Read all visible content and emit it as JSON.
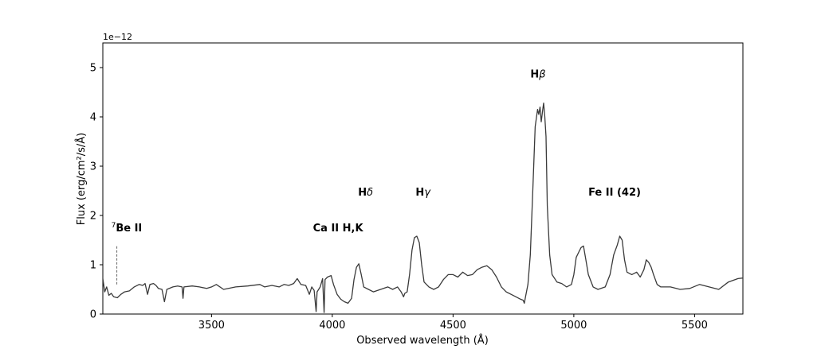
{
  "chart_data": {
    "type": "line",
    "xlabel": "Observed wavelength (Å)",
    "ylabel": "Flux (erg/cm²/s/Å)",
    "y_offset_label": "1e−12",
    "xlim": [
      3050,
      5700
    ],
    "ylim": [
      0,
      5.5
    ],
    "xticks": [
      3500,
      4000,
      4500,
      5000,
      5500
    ],
    "yticks": [
      0,
      1,
      2,
      3,
      4,
      5
    ],
    "grid": false,
    "line_color": "#3a3a3a",
    "marker_color": "#666666",
    "series": [
      {
        "points": [
          [
            3050,
            0.72
          ],
          [
            3058,
            0.45
          ],
          [
            3066,
            0.55
          ],
          [
            3075,
            0.38
          ],
          [
            3085,
            0.42
          ],
          [
            3095,
            0.35
          ],
          [
            3110,
            0.33
          ],
          [
            3125,
            0.4
          ],
          [
            3140,
            0.45
          ],
          [
            3160,
            0.47
          ],
          [
            3180,
            0.55
          ],
          [
            3200,
            0.6
          ],
          [
            3215,
            0.58
          ],
          [
            3225,
            0.62
          ],
          [
            3235,
            0.4
          ],
          [
            3245,
            0.6
          ],
          [
            3260,
            0.62
          ],
          [
            3270,
            0.58
          ],
          [
            3280,
            0.52
          ],
          [
            3295,
            0.5
          ],
          [
            3305,
            0.25
          ],
          [
            3315,
            0.5
          ],
          [
            3340,
            0.55
          ],
          [
            3360,
            0.57
          ],
          [
            3378,
            0.55
          ],
          [
            3382,
            0.32
          ],
          [
            3386,
            0.55
          ],
          [
            3420,
            0.57
          ],
          [
            3450,
            0.55
          ],
          [
            3480,
            0.52
          ],
          [
            3500,
            0.55
          ],
          [
            3520,
            0.6
          ],
          [
            3550,
            0.5
          ],
          [
            3600,
            0.55
          ],
          [
            3650,
            0.57
          ],
          [
            3700,
            0.6
          ],
          [
            3720,
            0.55
          ],
          [
            3750,
            0.58
          ],
          [
            3780,
            0.55
          ],
          [
            3800,
            0.6
          ],
          [
            3820,
            0.58
          ],
          [
            3840,
            0.62
          ],
          [
            3855,
            0.72
          ],
          [
            3870,
            0.6
          ],
          [
            3890,
            0.58
          ],
          [
            3905,
            0.4
          ],
          [
            3915,
            0.55
          ],
          [
            3925,
            0.48
          ],
          [
            3933,
            0.05
          ],
          [
            3937,
            0.45
          ],
          [
            3950,
            0.55
          ],
          [
            3960,
            0.72
          ],
          [
            3966,
            0.03
          ],
          [
            3970,
            0.7
          ],
          [
            3980,
            0.75
          ],
          [
            3995,
            0.78
          ],
          [
            4005,
            0.6
          ],
          [
            4020,
            0.4
          ],
          [
            4035,
            0.3
          ],
          [
            4050,
            0.25
          ],
          [
            4065,
            0.22
          ],
          [
            4080,
            0.32
          ],
          [
            4090,
            0.7
          ],
          [
            4100,
            0.95
          ],
          [
            4110,
            1.02
          ],
          [
            4120,
            0.8
          ],
          [
            4130,
            0.55
          ],
          [
            4150,
            0.5
          ],
          [
            4170,
            0.45
          ],
          [
            4200,
            0.5
          ],
          [
            4230,
            0.55
          ],
          [
            4250,
            0.5
          ],
          [
            4270,
            0.55
          ],
          [
            4285,
            0.45
          ],
          [
            4295,
            0.35
          ],
          [
            4300,
            0.42
          ],
          [
            4310,
            0.45
          ],
          [
            4320,
            0.8
          ],
          [
            4330,
            1.3
          ],
          [
            4340,
            1.55
          ],
          [
            4350,
            1.58
          ],
          [
            4360,
            1.45
          ],
          [
            4370,
            1.0
          ],
          [
            4380,
            0.65
          ],
          [
            4400,
            0.55
          ],
          [
            4420,
            0.5
          ],
          [
            4440,
            0.55
          ],
          [
            4460,
            0.7
          ],
          [
            4480,
            0.8
          ],
          [
            4500,
            0.8
          ],
          [
            4520,
            0.75
          ],
          [
            4540,
            0.85
          ],
          [
            4560,
            0.78
          ],
          [
            4580,
            0.8
          ],
          [
            4600,
            0.9
          ],
          [
            4620,
            0.95
          ],
          [
            4640,
            0.98
          ],
          [
            4660,
            0.9
          ],
          [
            4680,
            0.75
          ],
          [
            4700,
            0.55
          ],
          [
            4720,
            0.45
          ],
          [
            4740,
            0.4
          ],
          [
            4760,
            0.35
          ],
          [
            4780,
            0.3
          ],
          [
            4790,
            0.28
          ],
          [
            4795,
            0.22
          ],
          [
            4800,
            0.35
          ],
          [
            4810,
            0.6
          ],
          [
            4820,
            1.2
          ],
          [
            4830,
            2.5
          ],
          [
            4840,
            3.8
          ],
          [
            4850,
            4.15
          ],
          [
            4855,
            4.05
          ],
          [
            4860,
            4.2
          ],
          [
            4865,
            3.9
          ],
          [
            4870,
            4.1
          ],
          [
            4875,
            4.28
          ],
          [
            4880,
            4.0
          ],
          [
            4885,
            3.6
          ],
          [
            4890,
            2.2
          ],
          [
            4900,
            1.2
          ],
          [
            4910,
            0.8
          ],
          [
            4930,
            0.65
          ],
          [
            4950,
            0.62
          ],
          [
            4970,
            0.55
          ],
          [
            4990,
            0.6
          ],
          [
            5000,
            0.8
          ],
          [
            5010,
            1.15
          ],
          [
            5020,
            1.25
          ],
          [
            5030,
            1.35
          ],
          [
            5040,
            1.38
          ],
          [
            5050,
            1.1
          ],
          [
            5060,
            0.8
          ],
          [
            5080,
            0.55
          ],
          [
            5100,
            0.5
          ],
          [
            5130,
            0.55
          ],
          [
            5150,
            0.8
          ],
          [
            5165,
            1.2
          ],
          [
            5180,
            1.4
          ],
          [
            5190,
            1.58
          ],
          [
            5200,
            1.5
          ],
          [
            5210,
            1.1
          ],
          [
            5220,
            0.85
          ],
          [
            5240,
            0.8
          ],
          [
            5260,
            0.85
          ],
          [
            5275,
            0.75
          ],
          [
            5290,
            0.9
          ],
          [
            5300,
            1.1
          ],
          [
            5310,
            1.05
          ],
          [
            5320,
            0.95
          ],
          [
            5330,
            0.8
          ],
          [
            5345,
            0.6
          ],
          [
            5360,
            0.55
          ],
          [
            5400,
            0.55
          ],
          [
            5440,
            0.5
          ],
          [
            5480,
            0.52
          ],
          [
            5520,
            0.6
          ],
          [
            5560,
            0.55
          ],
          [
            5600,
            0.5
          ],
          [
            5640,
            0.65
          ],
          [
            5680,
            0.72
          ],
          [
            5700,
            0.73
          ]
        ]
      }
    ],
    "annotations": [
      {
        "x": 3085,
        "y": 1.68,
        "prefix": "7",
        "text": "Be II"
      },
      {
        "x": 3920,
        "y": 1.68,
        "text": "Ca II H,K"
      },
      {
        "x": 4107,
        "y": 2.4,
        "main": "H",
        "greek": "δ"
      },
      {
        "x": 4345,
        "y": 2.4,
        "main": "H",
        "greek": "γ"
      },
      {
        "x": 4820,
        "y": 4.8,
        "main": "H",
        "greek": "β"
      },
      {
        "x": 5060,
        "y": 2.4,
        "text": "Fe II (42)"
      }
    ],
    "marker": {
      "x": 3108,
      "y0": 0.6,
      "y1": 1.38
    }
  }
}
